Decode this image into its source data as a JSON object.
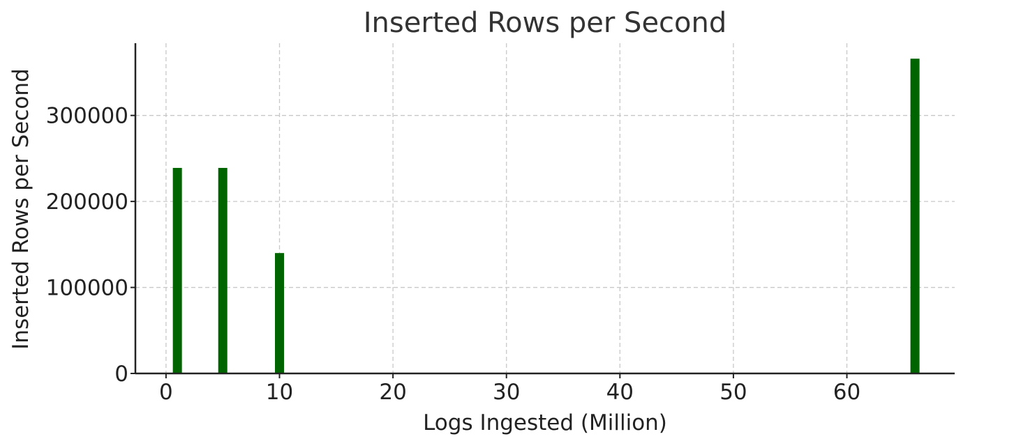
{
  "chart_data": {
    "type": "bar",
    "title": "Inserted Rows per Second",
    "xlabel": "Logs Ingested (Million)",
    "ylabel": "Inserted Rows per Second",
    "x": [
      1,
      5,
      10,
      66
    ],
    "values": [
      239000,
      239000,
      140000,
      366000
    ],
    "bar_width": 0.8,
    "xlim": [
      -2.7,
      69.5
    ],
    "ylim": [
      0,
      384000
    ],
    "xticks": [
      0,
      10,
      20,
      30,
      40,
      50,
      60
    ],
    "yticks": [
      0,
      100000,
      200000,
      300000
    ],
    "grid": true,
    "colors": {
      "bar": "#006400"
    }
  }
}
